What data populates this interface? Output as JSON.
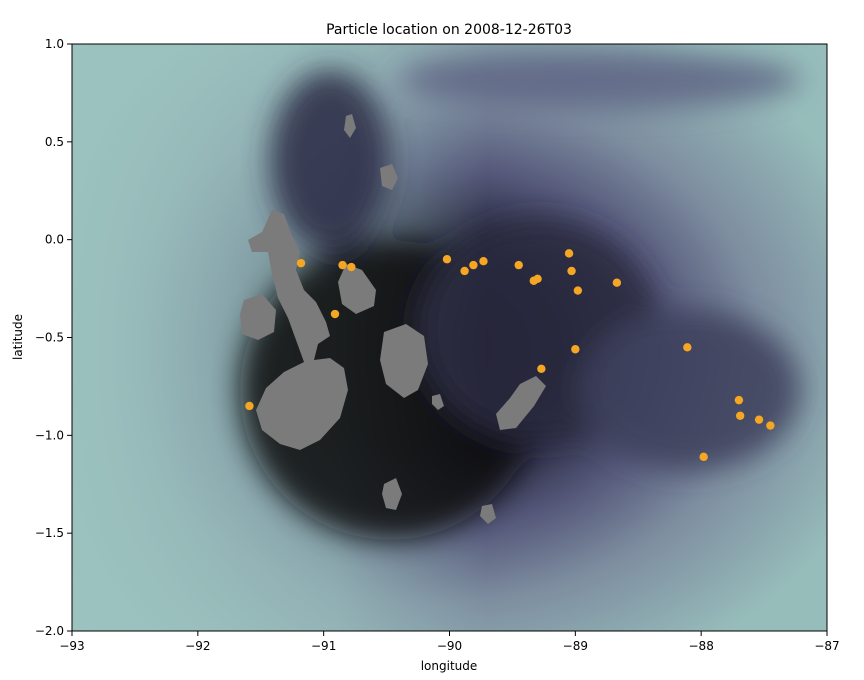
{
  "chart_data": {
    "type": "scatter",
    "title": "Particle location on 2008-12-26T03",
    "xlabel": "longitude",
    "ylabel": "latitude",
    "xlim": [
      -93,
      -87
    ],
    "ylim": [
      -2.0,
      1.0
    ],
    "xticks": [
      -93,
      -92,
      -91,
      -90,
      -89,
      -88,
      -87
    ],
    "xtick_labels": [
      "−93",
      "−92",
      "−91",
      "−90",
      "−89",
      "−88",
      "−87"
    ],
    "yticks": [
      1.0,
      0.5,
      0.0,
      -0.5,
      -1.0,
      -1.5,
      -2.0
    ],
    "ytick_labels": [
      "1.0",
      "0.5",
      "0.0",
      "−0.5",
      "−1.0",
      "−1.5",
      "−2.0"
    ],
    "grid": false,
    "marker_color": "#f5a623",
    "background": "ocean field contour (dark navy near islands, pale teal to the west), grey land masses",
    "points": [
      {
        "x": -91.18,
        "y": -0.12
      },
      {
        "x": -90.85,
        "y": -0.13
      },
      {
        "x": -90.78,
        "y": -0.14
      },
      {
        "x": -90.91,
        "y": -0.38
      },
      {
        "x": -91.59,
        "y": -0.85
      },
      {
        "x": -90.02,
        "y": -0.1
      },
      {
        "x": -89.88,
        "y": -0.16
      },
      {
        "x": -89.81,
        "y": -0.13
      },
      {
        "x": -89.73,
        "y": -0.11
      },
      {
        "x": -89.45,
        "y": -0.13
      },
      {
        "x": -89.33,
        "y": -0.21
      },
      {
        "x": -89.3,
        "y": -0.2
      },
      {
        "x": -89.05,
        "y": -0.07
      },
      {
        "x": -89.03,
        "y": -0.16
      },
      {
        "x": -88.98,
        "y": -0.26
      },
      {
        "x": -88.67,
        "y": -0.22
      },
      {
        "x": -89.27,
        "y": -0.66
      },
      {
        "x": -89.0,
        "y": -0.56
      },
      {
        "x": -88.11,
        "y": -0.55
      },
      {
        "x": -87.7,
        "y": -0.82
      },
      {
        "x": -87.69,
        "y": -0.9
      },
      {
        "x": -87.54,
        "y": -0.92
      },
      {
        "x": -87.45,
        "y": -0.95
      },
      {
        "x": -87.98,
        "y": -1.11
      }
    ]
  }
}
